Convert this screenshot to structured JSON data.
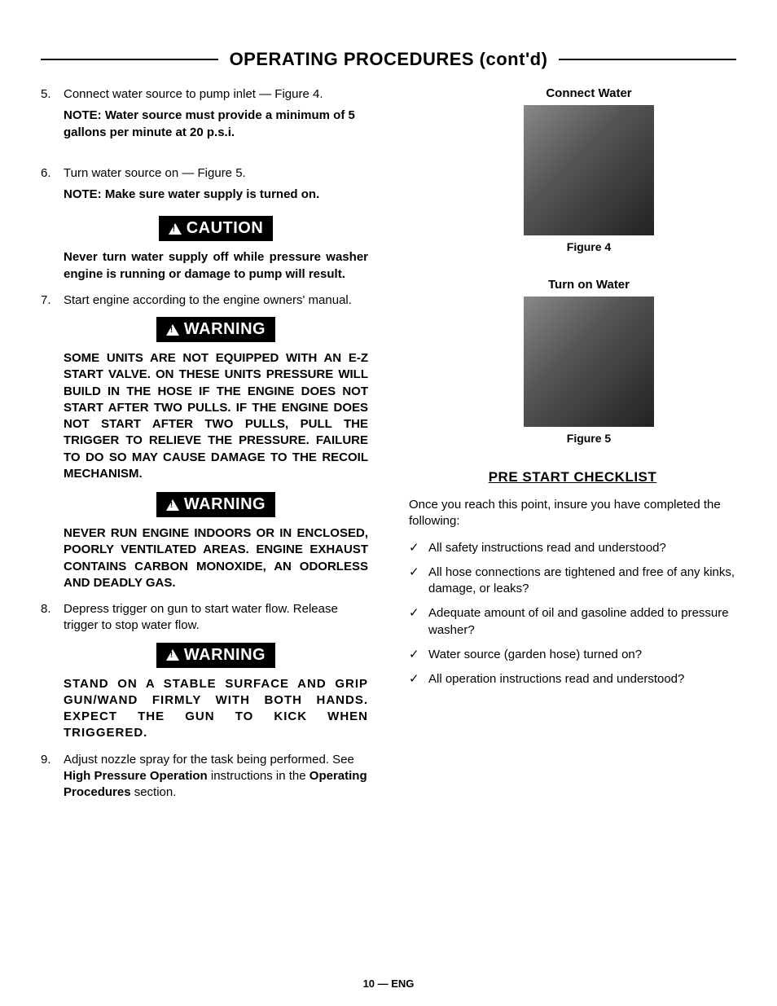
{
  "header": {
    "title": "OPERATING  PROCEDURES (cont'd)"
  },
  "left": {
    "step5": {
      "num": "5.",
      "text": "Connect water source to pump inlet — Figure 4."
    },
    "note5": "NOTE: Water source must provide a minimum of 5 gallons per minute at 20 p.s.i.",
    "step6": {
      "num": "6.",
      "text": "Turn water source on — Figure 5."
    },
    "note6": "NOTE:  Make sure water supply is turned on.",
    "caution_label": "CAUTION",
    "caution_text": "Never turn water supply off while pressure washer engine is running or damage to pump will result.",
    "step7": {
      "num": "7.",
      "text": "Start engine according to the engine owners' manual."
    },
    "warning_label": "WARNING",
    "warning1_text": "SOME UNITS ARE NOT EQUIPPED WITH AN E-Z START VALVE. ON THESE UNITS PRESSURE WILL BUILD IN THE HOSE IF THE ENGINE DOES NOT START AFTER TWO PULLS. IF THE ENGINE DOES NOT START AFTER TWO PULLS, PULL THE TRIGGER TO RELIEVE THE PRESSURE. FAILURE TO DO SO MAY CAUSE DAMAGE TO THE RECOIL MECHANISM.",
    "warning2_text": "NEVER RUN ENGINE INDOORS OR IN ENCLOSED, POORLY VENTILATED AREAS. ENGINE EXHAUST CONTAINS CARBON MONOXIDE, AN ODORLESS AND DEADLY GAS.",
    "step8": {
      "num": "8.",
      "text": "Depress trigger on gun to start water flow. Release trigger to stop water flow."
    },
    "warning3_text": "STAND ON A STABLE SURFACE AND GRIP GUN/WAND FIRMLY WITH BOTH HANDS. EXPECT THE GUN TO KICK WHEN TRIGGERED.",
    "step9": {
      "num": "9.",
      "pre": "Adjust nozzle spray for the task being performed. See ",
      "bold1": "High Pressure Operation",
      "mid": " instructions in the ",
      "bold2": "Operating Procedures",
      "post": " section."
    }
  },
  "right": {
    "fig4": {
      "title": "Connect Water",
      "caption": "Figure 4",
      "color": "#3a3a3a"
    },
    "fig5": {
      "title": "Turn on Water",
      "caption": "Figure 5",
      "color": "#5a5a5a"
    },
    "checklist": {
      "heading": "PRE START CHECKLIST",
      "intro": "Once you reach this point, insure you have completed the following:",
      "mark": "✓",
      "items": [
        "All safety instructions read and understood?",
        "All hose connections are tightened and free of any kinks, damage, or leaks?",
        "Adequate amount of oil and gasoline added to pressure washer?",
        "Water source (garden hose) turned on?",
        "All operation instructions read and understood?"
      ]
    }
  },
  "footer": "10 — ENG",
  "colors": {
    "text": "#000000",
    "bg": "#ffffff",
    "badge_bg": "#000000",
    "badge_fg": "#ffffff"
  }
}
